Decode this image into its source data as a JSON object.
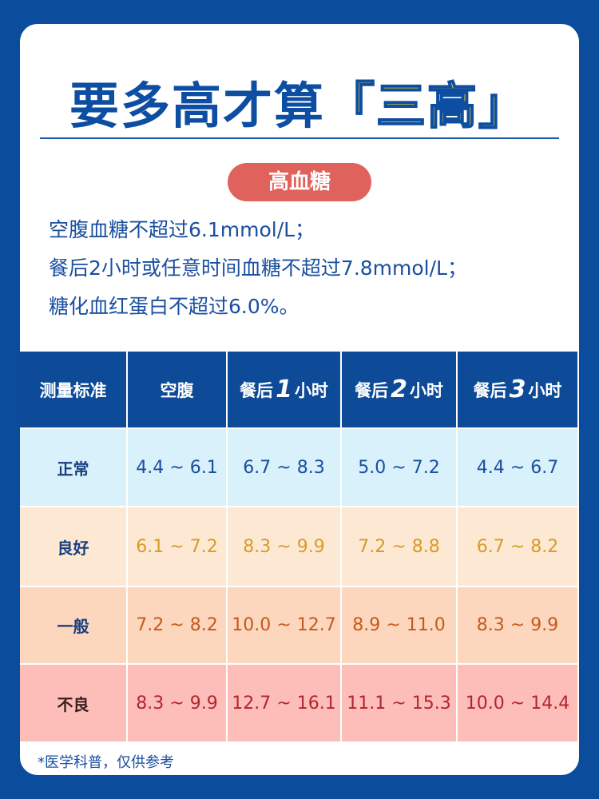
{
  "header": {
    "title": "要多高才算",
    "highlight": "「三高」"
  },
  "badge": "高血糖",
  "criteria": [
    "空腹血糖不超过6.1mmol/L；",
    "餐后2小时或任意时间血糖不超过7.8mmol/L；",
    "糖化血红蛋白不超过6.0%。"
  ],
  "table": {
    "columns": [
      {
        "text": "测量标准"
      },
      {
        "text": "空腹"
      },
      {
        "before": "餐后",
        "number": "1",
        "after": "小时"
      },
      {
        "before": "餐后",
        "number": "2",
        "after": "小时"
      },
      {
        "before": "餐后",
        "number": "3",
        "after": "小时"
      }
    ],
    "rows": [
      {
        "label": "正常",
        "values": [
          "4.4 ~ 6.1",
          "6.7 ~ 8.3",
          "5.0 ~ 7.2",
          "4.4 ~ 6.7"
        ],
        "background": "#d9f1fb",
        "color": "#1a4fa0"
      },
      {
        "label": "良好",
        "values": [
          "6.1 ~ 7.2",
          "8.3 ~ 9.9",
          "7.2 ~ 8.8",
          "6.7 ~ 8.2"
        ],
        "background": "#fde9d3",
        "color": "#d99a26"
      },
      {
        "label": "一般",
        "values": [
          "7.2 ~ 8.2",
          "10.0 ~ 12.7",
          "8.9 ~ 11.0",
          "8.3 ~ 9.9"
        ],
        "background": "#fcd6bd",
        "color": "#c65a1c"
      },
      {
        "label": "不良",
        "values": [
          "8.3 ~ 9.9",
          "12.7 ~ 16.1",
          "11.1 ~ 15.3",
          "10.0 ~ 14.4"
        ],
        "background": "#fdbdb8",
        "color": "#b3262d"
      }
    ]
  },
  "footnote": "*医学科普，仅供参考"
}
